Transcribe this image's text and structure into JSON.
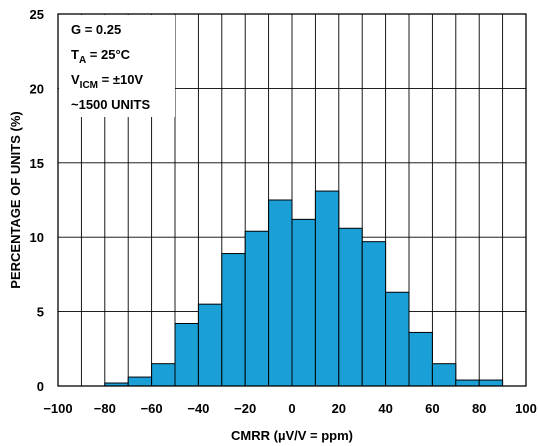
{
  "chart_data": {
    "type": "bar",
    "title": "",
    "xlabel": "CMRR (µV/V = ppm)",
    "ylabel": "PERCENTAGE OF UNITS (%)",
    "xlim": [
      -100,
      100
    ],
    "ylim": [
      0,
      25
    ],
    "grid": true,
    "bar_color": "#1a9fd6",
    "xticks": [
      "−100",
      "−80",
      "−60",
      "−40",
      "−20",
      "0",
      "20",
      "40",
      "60",
      "80",
      "100"
    ],
    "yticks": [
      "0",
      "5",
      "10",
      "15",
      "20",
      "25"
    ],
    "bin_width": 10,
    "bins": [
      {
        "x": -80,
        "value": 0.2
      },
      {
        "x": -70,
        "value": 0.6
      },
      {
        "x": -60,
        "value": 1.5
      },
      {
        "x": -50,
        "value": 4.2
      },
      {
        "x": -40,
        "value": 5.5
      },
      {
        "x": -30,
        "value": 8.9
      },
      {
        "x": -20,
        "value": 10.4
      },
      {
        "x": -10,
        "value": 12.5
      },
      {
        "x": 0,
        "value": 11.2
      },
      {
        "x": 10,
        "value": 13.1
      },
      {
        "x": 20,
        "value": 10.6
      },
      {
        "x": 30,
        "value": 9.7
      },
      {
        "x": 40,
        "value": 6.3
      },
      {
        "x": 50,
        "value": 3.6
      },
      {
        "x": 60,
        "value": 1.5
      },
      {
        "x": 70,
        "value": 0.4
      },
      {
        "x": 80,
        "value": 0.4
      }
    ],
    "annotations": [
      {
        "main": "G = 0.25",
        "sub": "",
        "tail": ""
      },
      {
        "main": "T",
        "sub": "A",
        "tail": " = 25°C"
      },
      {
        "main": "V",
        "sub": "ICM",
        "tail": " = ±10V"
      },
      {
        "main": "~1500 UNITS",
        "sub": "",
        "tail": ""
      }
    ]
  }
}
